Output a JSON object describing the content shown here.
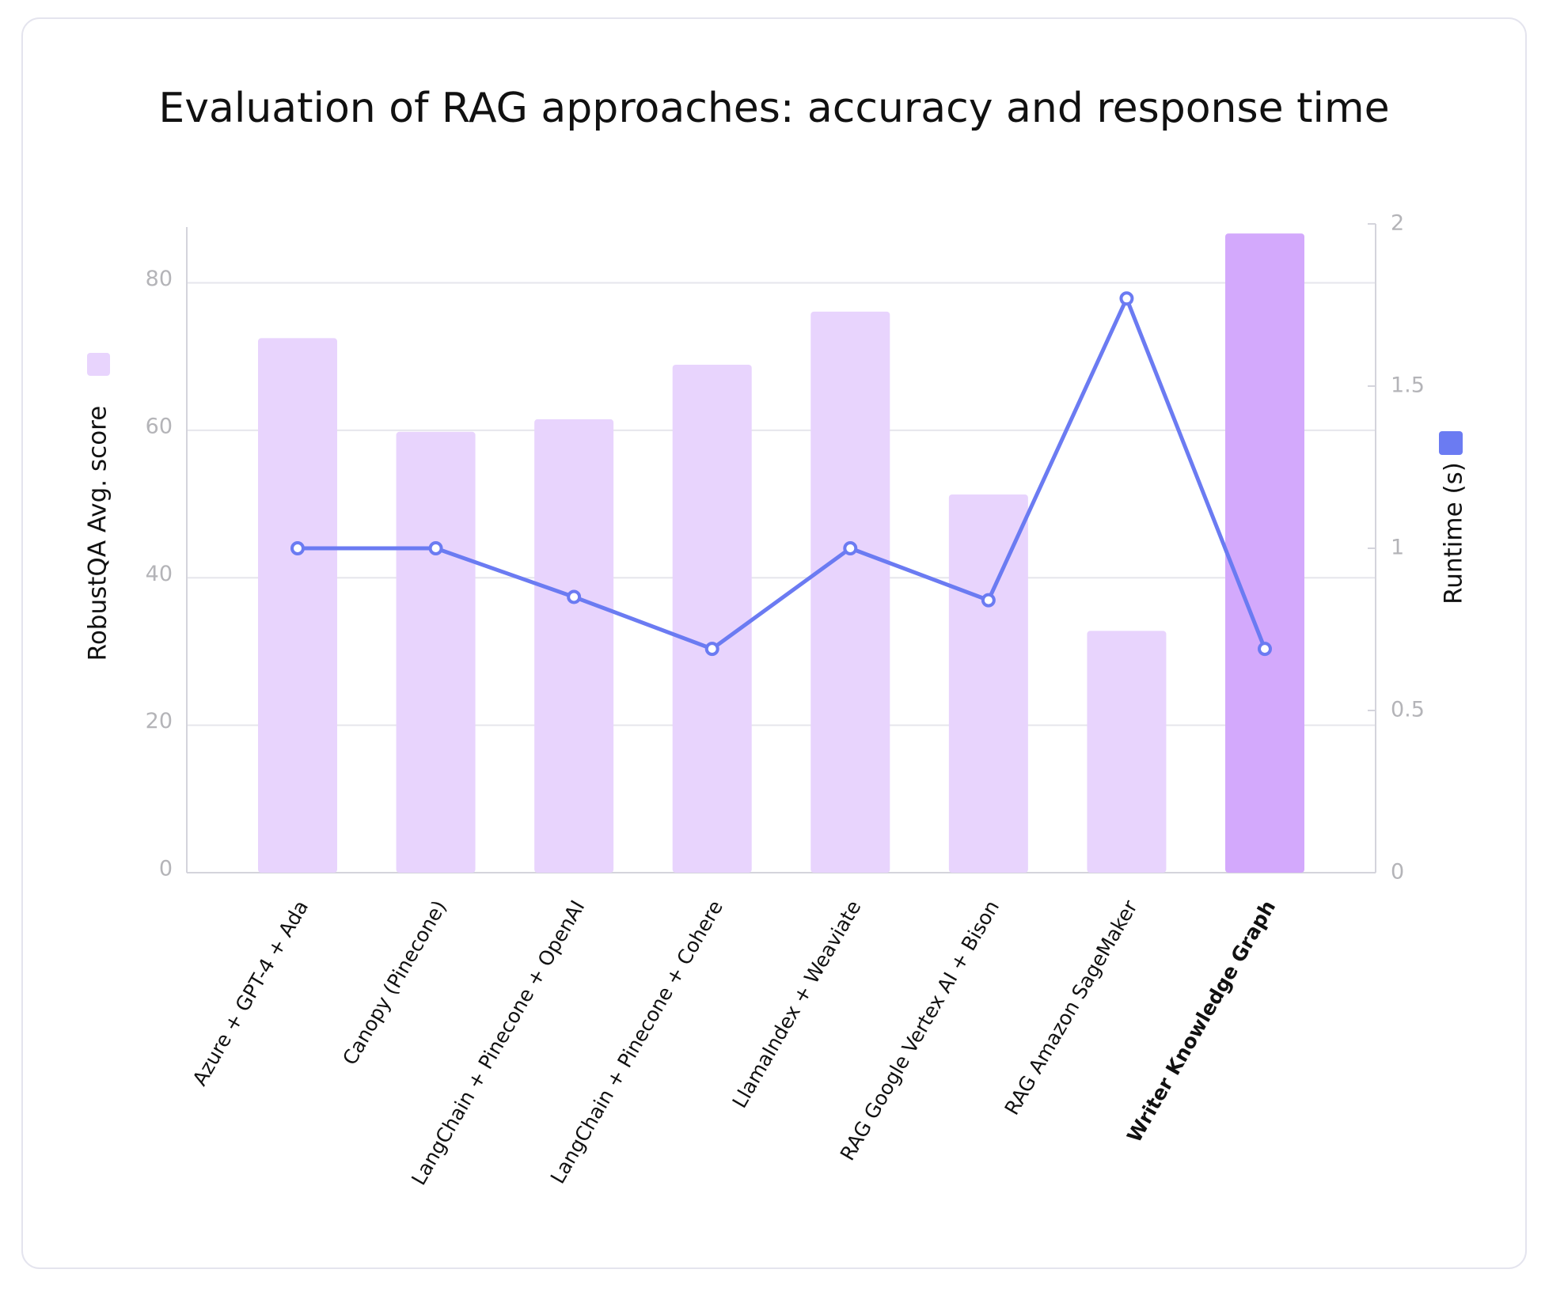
{
  "chart_data": {
    "type": "bar_line",
    "title": "Evaluation of RAG approaches: accuracy and response time",
    "y_label": "RobustQA Avg. score",
    "y2_label": "Runtime (s)",
    "categories": [
      "Azure + GPT-4 + Ada",
      "Canopy (Pinecone)",
      "LangChain + Pinecone + OpenAI",
      "LangChain + Pinecone + Cohere",
      "LlamaIndex + Weaviate",
      "RAG Google Vertex AI + Bison",
      "RAG Amazon SageMaker",
      "Writer Knowledge Graph"
    ],
    "bold_labels": [
      false,
      false,
      false,
      false,
      false,
      false,
      false,
      true
    ],
    "series": [
      {
        "type": "bar",
        "axis": "y",
        "color": "#e8d4fd",
        "colors": [
          "#e8d4fd",
          "#e8d4fd",
          "#e8d4fd",
          "#e8d4fd",
          "#e8d4fd",
          "#e8d4fd",
          "#e8d4fd",
          "#d3a9fc"
        ],
        "values": [
          72.5,
          59.8,
          61.5,
          68.9,
          76.1,
          51.3,
          32.8,
          86.7
        ]
      },
      {
        "type": "line",
        "axis": "y2",
        "color": "#6b7bf2",
        "values": [
          1.0,
          1.0,
          0.85,
          0.69,
          1.0,
          0.84,
          1.77,
          0.69
        ]
      }
    ],
    "ylim": [
      0,
      88
    ],
    "yticks": [
      0,
      20,
      40,
      60,
      80
    ],
    "y2lim": [
      0,
      2
    ],
    "y2ticks": [
      0,
      0.5,
      1,
      1.5,
      2
    ],
    "grid": true
  }
}
